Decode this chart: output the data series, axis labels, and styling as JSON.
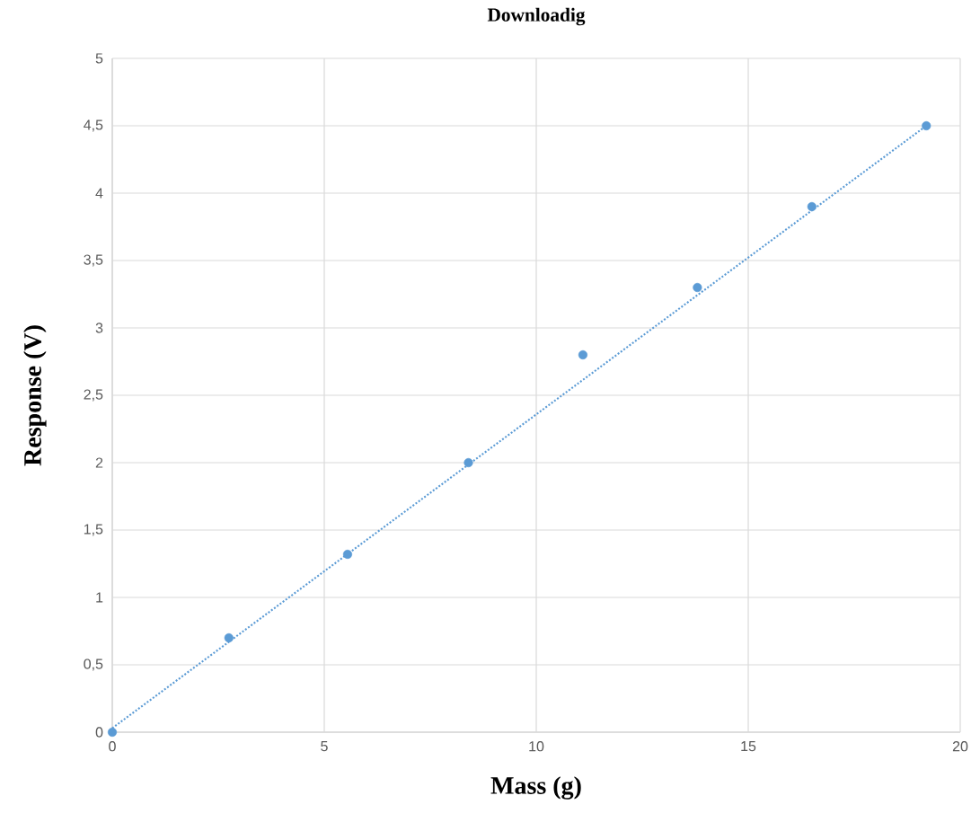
{
  "chart_data": {
    "type": "scatter",
    "title": "Downloadig",
    "xlabel": "Mass (g)",
    "ylabel": "Response (V)",
    "series": [
      {
        "marker": "circle",
        "color": "#5b9bd5",
        "x": [
          0,
          2.75,
          5.55,
          8.4,
          11.1,
          13.8,
          16.5,
          19.2
        ],
        "values": [
          0,
          0.7,
          1.32,
          2.0,
          2.8,
          3.3,
          3.9,
          4.5
        ]
      },
      {
        "type": "line",
        "marker": "none",
        "color": "#5b9bd5",
        "line_style": "dotted",
        "x": [
          0,
          19.2
        ],
        "values": [
          0.03,
          4.5
        ]
      }
    ],
    "grid": true,
    "xlim": [
      0,
      20
    ],
    "xticks": [
      0,
      5,
      10,
      15,
      20
    ],
    "ylim": [
      0,
      5
    ],
    "yticks": [
      0,
      {
        "value": 0.5,
        "label": "0,5"
      },
      1,
      {
        "value": 1.5,
        "label": "1,5"
      },
      2,
      {
        "value": 2.5,
        "label": "2,5"
      },
      3,
      {
        "value": 3.5,
        "label": "3,5"
      },
      4,
      {
        "value": 4.5,
        "label": "4,5"
      },
      5
    ]
  }
}
